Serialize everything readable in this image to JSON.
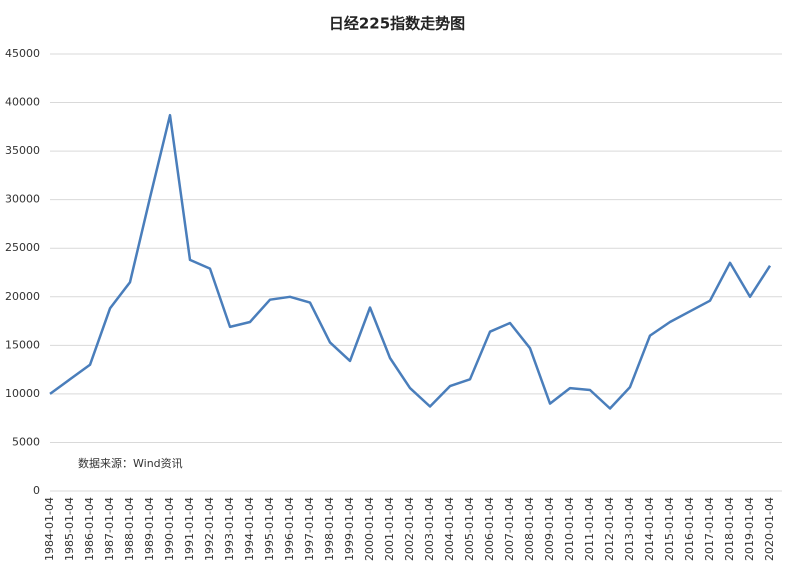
{
  "chart_data": {
    "type": "line",
    "title": "日经225指数走势图",
    "annotation": "数据来源：Wind资讯",
    "x": [
      "1984-01-04",
      "1985-01-04",
      "1986-01-04",
      "1987-01-04",
      "1988-01-04",
      "1989-01-04",
      "1990-01-04",
      "1991-01-04",
      "1992-01-04",
      "1993-01-04",
      "1994-01-04",
      "1995-01-04",
      "1996-01-04",
      "1997-01-04",
      "1998-01-04",
      "1999-01-04",
      "2000-01-04",
      "2001-01-04",
      "2002-01-04",
      "2003-01-04",
      "2004-01-04",
      "2005-01-04",
      "2006-01-04",
      "2007-01-04",
      "2008-01-04",
      "2009-01-04",
      "2010-01-04",
      "2011-01-04",
      "2012-01-04",
      "2013-01-04",
      "2014-01-04",
      "2015-01-04",
      "2016-01-04",
      "2017-01-04",
      "2018-01-04",
      "2019-01-04",
      "2020-01-04"
    ],
    "values": [
      10000,
      11500,
      13000,
      18800,
      21500,
      30200,
      38700,
      23800,
      22900,
      16900,
      17400,
      19700,
      20000,
      19400,
      15300,
      13400,
      18900,
      13700,
      10600,
      8700,
      10800,
      11500,
      16400,
      17300,
      14700,
      9000,
      10600,
      10400,
      8500,
      10700,
      16000,
      17400,
      18500,
      19600,
      23500,
      20000,
      23200
    ],
    "color": "#4a7ebb",
    "ylim": [
      0,
      45000
    ],
    "yticks": [
      0,
      5000,
      10000,
      15000,
      20000,
      25000,
      30000,
      35000,
      40000,
      45000
    ],
    "grid": true
  }
}
